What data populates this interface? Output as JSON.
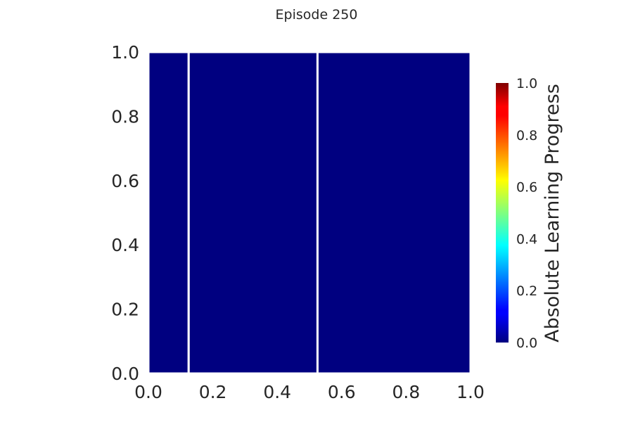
{
  "chart_data": {
    "type": "heatmap",
    "title": "Episode 250",
    "xlim": [
      0.0,
      1.0
    ],
    "ylim": [
      0.0,
      1.0
    ],
    "x_ticks": [
      "0.0",
      "0.2",
      "0.4",
      "0.6",
      "0.8",
      "1.0"
    ],
    "y_ticks": [
      "0.0",
      "0.2",
      "0.4",
      "0.6",
      "0.8",
      "1.0"
    ],
    "x_tick_values": [
      0.0,
      0.2,
      0.4,
      0.6,
      0.8,
      1.0
    ],
    "y_tick_values": [
      0.0,
      0.2,
      0.4,
      0.6,
      0.8,
      1.0
    ],
    "cells": [
      {
        "x0": 0.0,
        "x1": 0.125,
        "y0": 0.0,
        "y1": 1.0,
        "value": 0.0
      },
      {
        "x0": 0.125,
        "x1": 0.525,
        "y0": 0.0,
        "y1": 1.0,
        "value": 0.0
      },
      {
        "x0": 0.525,
        "x1": 1.0,
        "y0": 0.0,
        "y1": 1.0,
        "value": 0.0
      }
    ],
    "grid": false,
    "colorbar": {
      "label": "Absolute Learning Progress",
      "colormap": "jet",
      "range": [
        0.0,
        1.0
      ],
      "ticks": [
        "0.0",
        "0.2",
        "0.4",
        "0.6",
        "0.8",
        "1.0"
      ],
      "tick_values": [
        0.0,
        0.2,
        0.4,
        0.6,
        0.8,
        1.0
      ]
    },
    "cell_border_color": "#ffffff"
  }
}
